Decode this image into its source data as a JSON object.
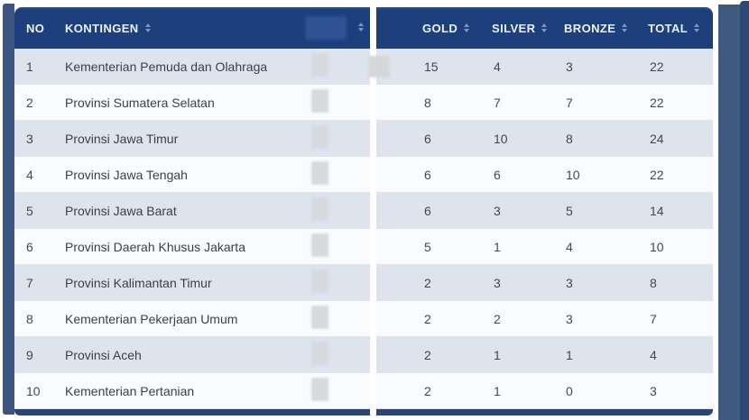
{
  "header": {
    "no": "NO",
    "kontingen": "KONTINGEN",
    "redacted_column": "",
    "gold": "GOLD",
    "silver": "SILVER",
    "bronze": "BRONZE",
    "total": "TOTAL"
  },
  "rows": [
    {
      "no": 1,
      "kontingen": "Kementerian Pemuda dan Olahraga",
      "gold": 15,
      "silver": 4,
      "bronze": 3,
      "total": 22
    },
    {
      "no": 2,
      "kontingen": "Provinsi Sumatera Selatan",
      "gold": 8,
      "silver": 7,
      "bronze": 7,
      "total": 22
    },
    {
      "no": 3,
      "kontingen": "Provinsi Jawa Timur",
      "gold": 6,
      "silver": 10,
      "bronze": 8,
      "total": 24
    },
    {
      "no": 4,
      "kontingen": "Provinsi Jawa Tengah",
      "gold": 6,
      "silver": 6,
      "bronze": 10,
      "total": 22
    },
    {
      "no": 5,
      "kontingen": "Provinsi Jawa Barat",
      "gold": 6,
      "silver": 3,
      "bronze": 5,
      "total": 14
    },
    {
      "no": 6,
      "kontingen": "Provinsi Daerah Khusus Jakarta",
      "gold": 5,
      "silver": 1,
      "bronze": 4,
      "total": 10
    },
    {
      "no": 7,
      "kontingen": "Provinsi Kalimantan Timur",
      "gold": 2,
      "silver": 3,
      "bronze": 3,
      "total": 8
    },
    {
      "no": 8,
      "kontingen": "Kementerian Pekerjaan Umum",
      "gold": 2,
      "silver": 2,
      "bronze": 3,
      "total": 7
    },
    {
      "no": 9,
      "kontingen": "Provinsi Aceh",
      "gold": 2,
      "silver": 1,
      "bronze": 1,
      "total": 4
    },
    {
      "no": 10,
      "kontingen": "Kementerian Pertanian",
      "gold": 2,
      "silver": 1,
      "bronze": 0,
      "total": 3
    }
  ],
  "colors": {
    "header_bg": "#1d3f7c",
    "row_odd": "#dde4ee",
    "row_even": "#fafbfd",
    "side_bar": "#3b5480",
    "bottom_bar": "#2a4574"
  }
}
